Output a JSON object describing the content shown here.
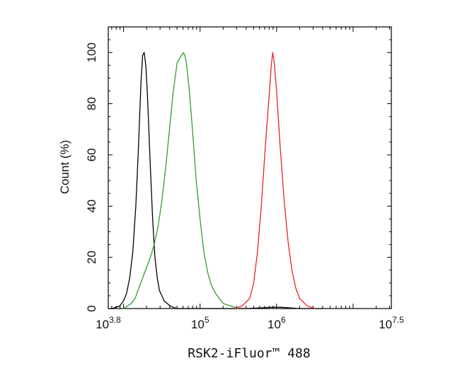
{
  "chart_data": {
    "type": "line",
    "xlabel": "RSK2-iFluor™ 488",
    "ylabel": "Count (%)",
    "x_scale": "log10",
    "xlim": [
      6309.57,
      31622776.6
    ],
    "ylim": [
      0,
      110
    ],
    "x_ticks": [
      {
        "base": "10",
        "exp": "3.8"
      },
      {
        "base": "10",
        "exp": "5"
      },
      {
        "base": "10",
        "exp": "6"
      },
      {
        "base": "10",
        "exp": "7.5"
      }
    ],
    "y_ticks": [
      0,
      20,
      40,
      60,
      80,
      100
    ],
    "grid": false,
    "series": [
      {
        "color": "#000000",
        "x": [
          6310,
          7080,
          7940,
          8910,
          10000,
          10960,
          12020,
          13180,
          14450,
          15490,
          16220,
          16980,
          17780,
          18620,
          19500,
          20420,
          21380,
          22390,
          23990,
          25700,
          27540,
          29510,
          31620,
          33880,
          37150,
          40740,
          44670,
          50120,
          63100,
          100000,
          200000,
          398110,
          891250,
          1122020,
          1995260,
          4000000
        ],
        "y": [
          0,
          0,
          0.5,
          1,
          3,
          6,
          12,
          22,
          40,
          60,
          75,
          90,
          99,
          100,
          95,
          85,
          70,
          55,
          35,
          20,
          12,
          7,
          5,
          3,
          2,
          1,
          0.5,
          0,
          0,
          0,
          0,
          0,
          0.5,
          0.5,
          0,
          0
        ]
      },
      {
        "color": "#2e9e2e",
        "x": [
          10000,
          11220,
          12590,
          14130,
          15850,
          17780,
          19950,
          22390,
          25120,
          28180,
          31620,
          35480,
          39810,
          44670,
          50120,
          54950,
          60260,
          63100,
          66070,
          72440,
          79430,
          89130,
          100000,
          112200,
          125890,
          141250,
          158490,
          177830,
          199530,
          251190,
          316230
        ],
        "y": [
          0,
          1,
          2,
          4,
          8,
          12,
          16,
          20,
          25,
          32,
          42,
          55,
          70,
          85,
          96,
          98,
          100,
          99,
          96,
          85,
          70,
          50,
          35,
          22,
          14,
          9,
          6,
          4,
          2,
          1,
          0
        ]
      },
      {
        "color": "#e8222a",
        "x": [
          281840,
          354810,
          446680,
          501190,
          562340,
          630960,
          707950,
          794330,
          851140,
          891250,
          933250,
          1000000,
          1122020,
          1258930,
          1412540,
          1584890,
          1778280,
          1995260,
          2511890,
          3162280
        ],
        "y": [
          0,
          1,
          4,
          10,
          22,
          40,
          62,
          82,
          95,
          100,
          96,
          85,
          62,
          42,
          26,
          15,
          8,
          4,
          1,
          0
        ]
      }
    ]
  }
}
